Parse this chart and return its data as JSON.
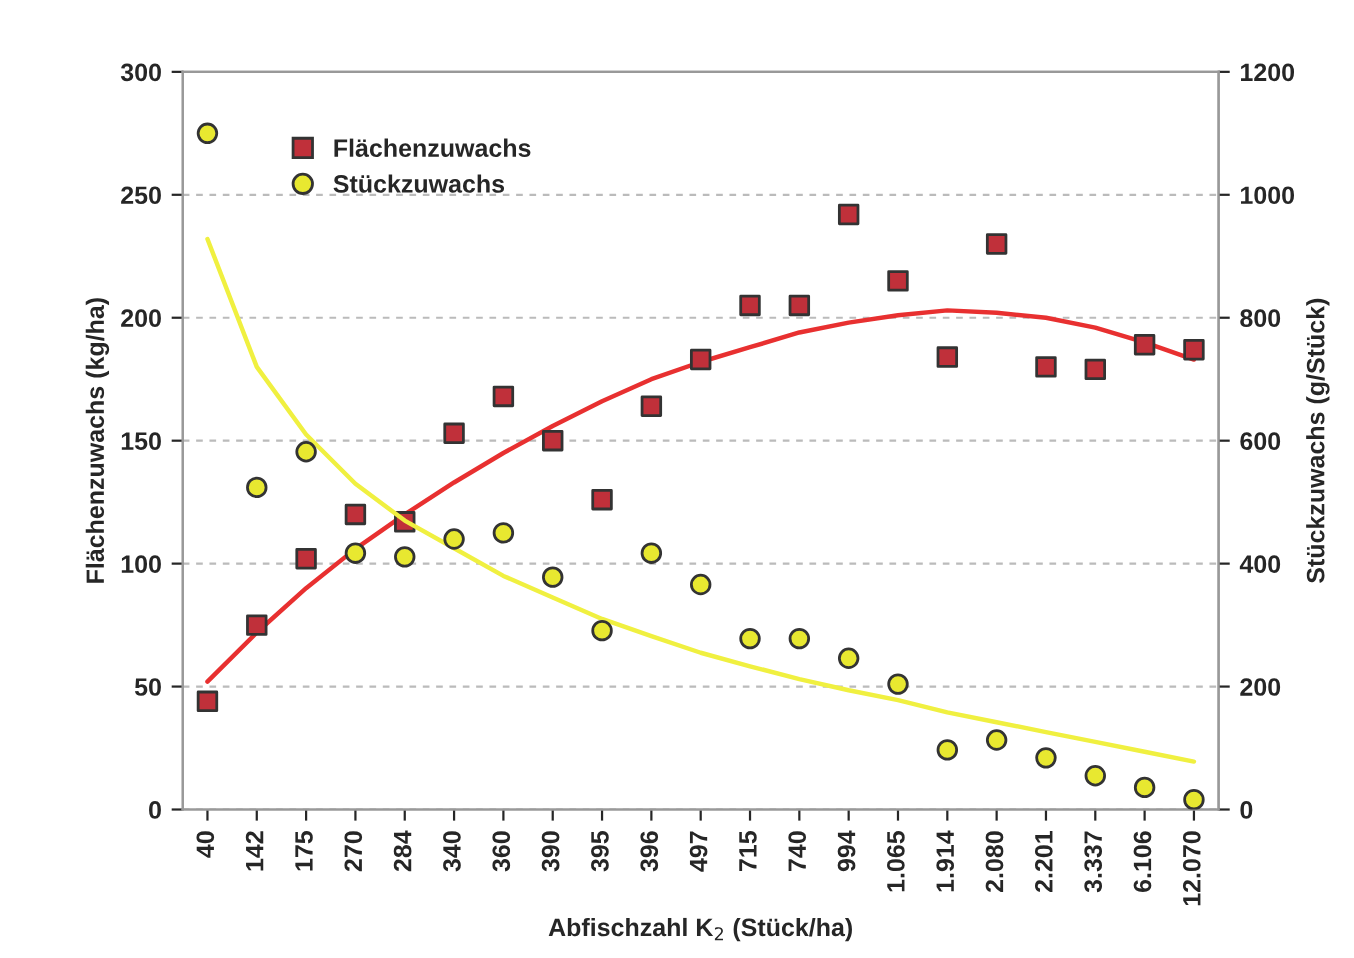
{
  "chart_data": {
    "type": "scatter",
    "xlabel": "Abfischzahl K$_{2}$ (Stück/ha)",
    "ylabel": "Flächenzuwachs (kg/ha)",
    "y2label": "Stückzuwachs (g/Stück)",
    "categories": [
      "40",
      "142",
      "175",
      "270",
      "284",
      "340",
      "360",
      "390",
      "395",
      "396",
      "497",
      "715",
      "740",
      "994",
      "1.065",
      "1.914",
      "2.080",
      "2.201",
      "3.337",
      "6.106",
      "12.070"
    ],
    "series": [
      {
        "name": "Flächenzuwachs",
        "marker": "square",
        "color": "#c0303a",
        "values": [
          44,
          75,
          102,
          120,
          117,
          153,
          168,
          150,
          126,
          164,
          183,
          205,
          205,
          242,
          215,
          184,
          230,
          180,
          179,
          189,
          187
        ]
      },
      {
        "name": "Stückzuwachs",
        "marker": "circle",
        "axis": "y2",
        "color": "#e8e830",
        "values": [
          1100,
          524,
          582,
          417,
          411,
          440,
          450,
          378,
          291,
          417,
          366,
          278,
          278,
          246,
          204,
          97,
          113,
          84,
          55,
          36,
          16
        ]
      },
      {
        "type": "line",
        "color": "#e83030",
        "values": [
          52,
          72,
          90,
          106,
          120,
          133,
          145,
          156,
          166,
          175,
          182,
          188,
          194,
          198,
          201,
          203,
          202,
          200,
          196,
          190,
          183
        ]
      },
      {
        "type": "line",
        "axis": "y2",
        "color": "#f0f040",
        "values": [
          928,
          720,
          610,
          530,
          470,
          425,
          380,
          345,
          310,
          282,
          255,
          233,
          212,
          194,
          178,
          158,
          142,
          126,
          110,
          94,
          78
        ]
      }
    ],
    "ylim": [
      0,
      300
    ],
    "yticks": [
      0,
      50,
      100,
      150,
      200,
      250,
      300
    ],
    "y2lim": [
      0,
      1200
    ],
    "y2ticks": [
      0,
      200,
      400,
      600,
      800,
      1000,
      1200
    ],
    "grid": "y",
    "legend": "top left"
  }
}
